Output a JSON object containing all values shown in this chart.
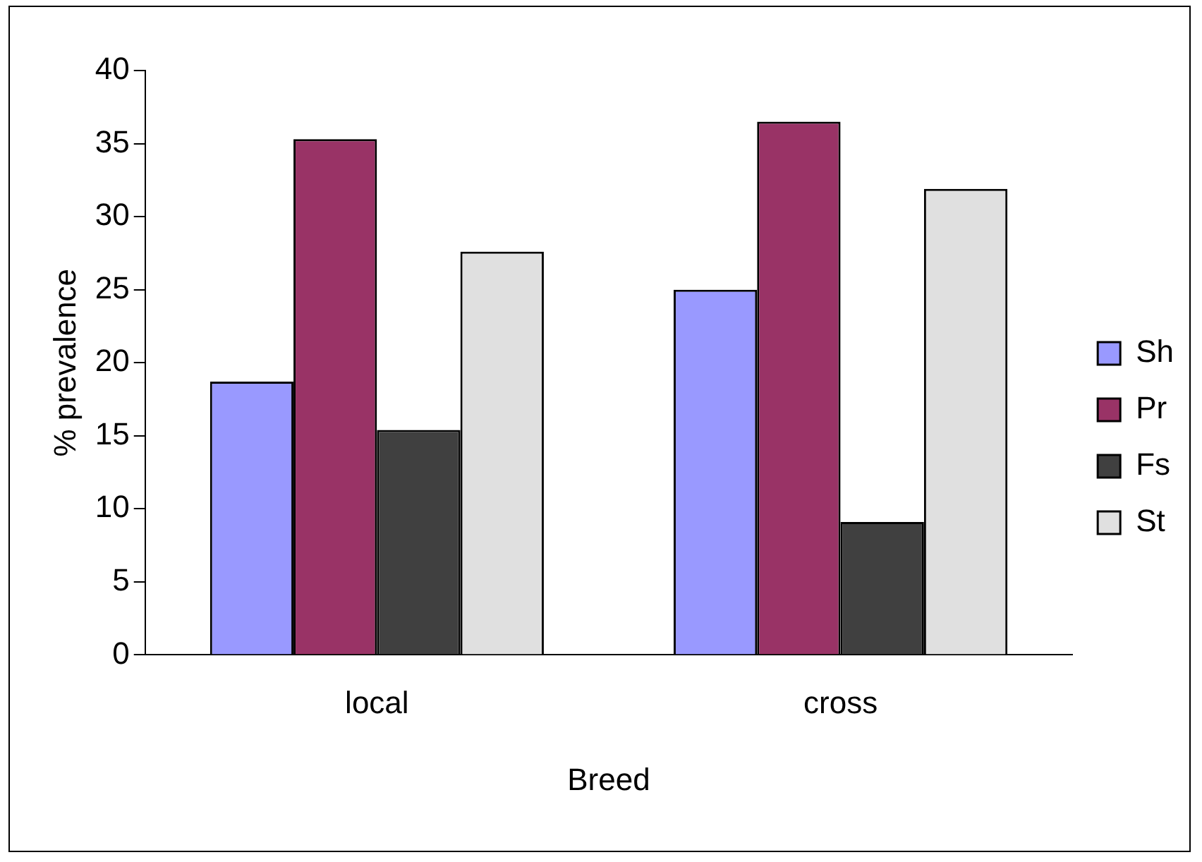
{
  "chart_data": {
    "type": "bar",
    "xlabel": "Breed",
    "ylabel": "% prevalence",
    "categories": [
      "local",
      "cross"
    ],
    "series": [
      {
        "name": "Sh",
        "color": "#9999ff",
        "values": [
          18.7,
          25.0
        ]
      },
      {
        "name": "Pr",
        "color": "#993366",
        "values": [
          35.3,
          36.5
        ]
      },
      {
        "name": "Fs",
        "color": "#404040",
        "values": [
          15.4,
          9.1
        ]
      },
      {
        "name": "St",
        "color": "#e0e0e0",
        "values": [
          27.6,
          31.9
        ]
      }
    ],
    "ylim": [
      0,
      40
    ],
    "yticks": [
      0,
      5,
      10,
      15,
      20,
      25,
      30,
      35,
      40
    ],
    "grid": false,
    "legend": "right"
  }
}
